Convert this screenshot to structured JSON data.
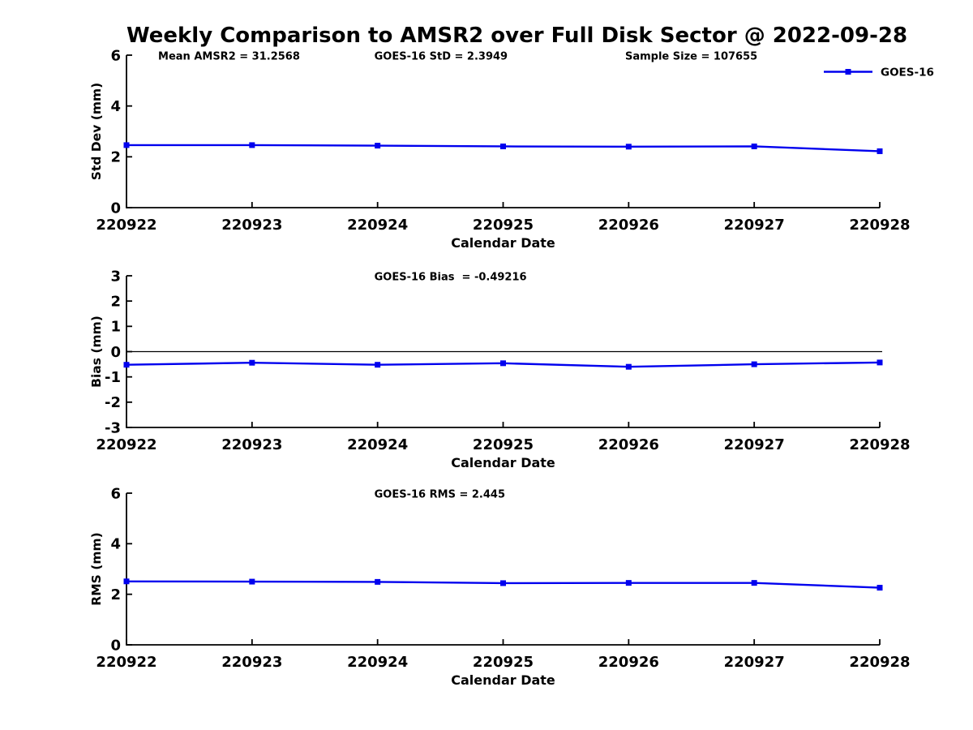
{
  "title": "Weekly Comparison to AMSR2 over Full Disk Sector @ 2022-09-28",
  "colors": {
    "series": "#0000EE",
    "axis": "#000000",
    "zero_line": "#000000",
    "background": "#FFFFFF"
  },
  "legend": {
    "entries": [
      "GOES-16"
    ],
    "position": "top-right",
    "marker": "square"
  },
  "chart_data": [
    {
      "type": "line",
      "name": "std-dev",
      "xlabel": "Calendar Date",
      "ylabel": "Std Dev (mm)",
      "ylim": [
        0,
        6
      ],
      "yticks": [
        0,
        2,
        4,
        6
      ],
      "grid": false,
      "zero_line": false,
      "show_legend": true,
      "categories": [
        "220922",
        "220923",
        "220924",
        "220925",
        "220926",
        "220927",
        "220928"
      ],
      "series": [
        {
          "name": "GOES-16",
          "values": [
            2.46,
            2.46,
            2.44,
            2.41,
            2.4,
            2.41,
            2.22
          ]
        }
      ],
      "annotations": [
        "Mean AMSR2 = 31.2568",
        "GOES-16 StD = 2.3949",
        "Sample Size = 107655"
      ]
    },
    {
      "type": "line",
      "name": "bias",
      "xlabel": "Calendar Date",
      "ylabel": "Bias (mm)",
      "ylim": [
        -3,
        3
      ],
      "yticks": [
        -3,
        -2,
        -1,
        0,
        1,
        2,
        3
      ],
      "grid": false,
      "zero_line": true,
      "show_legend": false,
      "categories": [
        "220922",
        "220923",
        "220924",
        "220925",
        "220926",
        "220927",
        "220928"
      ],
      "series": [
        {
          "name": "GOES-16",
          "values": [
            -0.52,
            -0.44,
            -0.52,
            -0.46,
            -0.6,
            -0.5,
            -0.43
          ]
        }
      ],
      "annotations": [
        "GOES-16 Bias  = -0.49216"
      ]
    },
    {
      "type": "line",
      "name": "rms",
      "xlabel": "Calendar Date",
      "ylabel": "RMS (mm)",
      "ylim": [
        0,
        6
      ],
      "yticks": [
        0,
        2,
        4,
        6
      ],
      "grid": false,
      "zero_line": false,
      "show_legend": false,
      "categories": [
        "220922",
        "220923",
        "220924",
        "220925",
        "220926",
        "220927",
        "220928"
      ],
      "series": [
        {
          "name": "GOES-16",
          "values": [
            2.51,
            2.5,
            2.49,
            2.44,
            2.45,
            2.45,
            2.26
          ]
        }
      ],
      "annotations": [
        "GOES-16 RMS = 2.445"
      ]
    }
  ]
}
